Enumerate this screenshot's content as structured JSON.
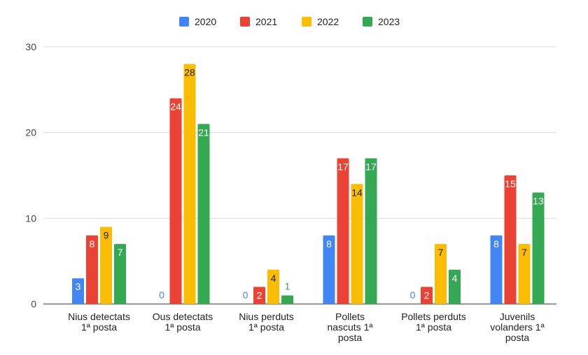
{
  "chart_data": {
    "type": "bar",
    "categories": [
      [
        "Nius detectats",
        "1ª posta"
      ],
      [
        "Ous detectats",
        "1ª posta"
      ],
      [
        "Nius perduts",
        "1ª posta"
      ],
      [
        "Pollets",
        "nascuts 1ª",
        "posta"
      ],
      [
        "Pollets perduts",
        "1ª posta"
      ],
      [
        "Juvenils",
        "volanders 1ª",
        "posta"
      ]
    ],
    "series": [
      {
        "name": "2020",
        "color": "#4285f4",
        "values": [
          3,
          0,
          0,
          8,
          0,
          8
        ]
      },
      {
        "name": "2021",
        "color": "#ea4335",
        "values": [
          8,
          24,
          2,
          17,
          2,
          15
        ]
      },
      {
        "name": "2022",
        "color": "#fbbc04",
        "values": [
          9,
          28,
          4,
          14,
          7,
          7
        ]
      },
      {
        "name": "2023",
        "color": "#34a853",
        "values": [
          7,
          21,
          1,
          17,
          4,
          13
        ]
      }
    ],
    "ylim": [
      0,
      30
    ],
    "yticks": [
      0,
      10,
      20,
      30
    ],
    "grid": true,
    "legend_position": "top-center"
  }
}
